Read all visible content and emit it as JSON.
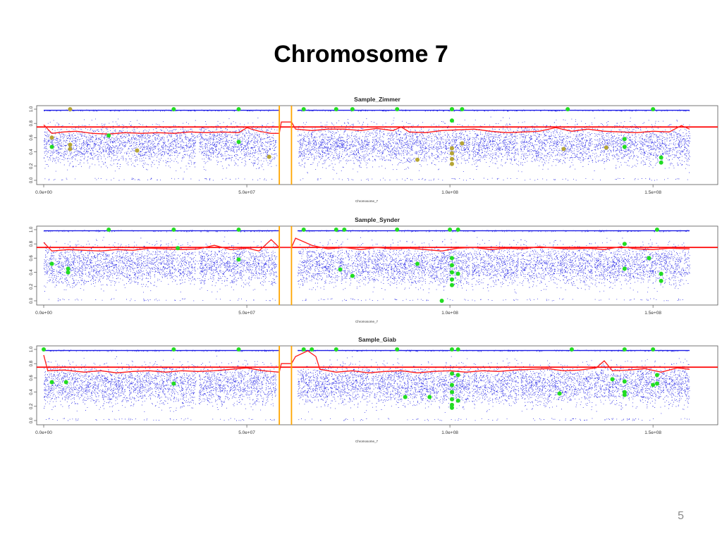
{
  "slide": {
    "title": "Chromosome 7",
    "page_number": "5"
  },
  "colors": {
    "points": "#1f1fe6",
    "baf_line": "#ff1a1a",
    "threshold_line": "#ff0000",
    "centromere_lines": "#ffa500",
    "highlight_green": "#22dd22",
    "highlight_olive": "#b5a535"
  },
  "chart_data": [
    {
      "type": "scatter",
      "title": "Sample_Zimmer",
      "xlabel": "Chromosome_7",
      "ylabel": "",
      "xlim": [
        0,
        159000000
      ],
      "ylim": [
        0,
        1
      ],
      "x_ticks": [
        0,
        50000000,
        100000000,
        150000000
      ],
      "x_tick_labels": [
        "0.0e+00",
        "5.0e+07",
        "1.0e+08",
        "1.5e+08"
      ],
      "y_ticks": [
        0,
        0.2,
        0.4,
        0.6,
        0.8,
        1.0
      ],
      "y_tick_labels": [
        "0.0",
        "0.2",
        "0.4",
        "0.6",
        "0.8",
        "1.0"
      ],
      "threshold": 0.75,
      "centromere": [
        58000000,
        61000000
      ],
      "grid": false,
      "series": [
        {
          "values": [
            [
              0,
              0.78
            ],
            [
              2000000,
              0.66
            ],
            [
              5000000,
              0.68
            ],
            [
              8000000,
              0.69
            ],
            [
              12000000,
              0.66
            ],
            [
              16000000,
              0.65
            ],
            [
              20000000,
              0.67
            ],
            [
              24000000,
              0.66
            ],
            [
              28000000,
              0.67
            ],
            [
              32000000,
              0.66
            ],
            [
              36000000,
              0.68
            ],
            [
              40000000,
              0.67
            ],
            [
              44000000,
              0.68
            ],
            [
              48000000,
              0.67
            ],
            [
              50000000,
              0.74
            ],
            [
              53000000,
              0.69
            ],
            [
              56000000,
              0.66
            ],
            [
              58000000,
              0.66
            ],
            [
              58500000,
              0.82
            ],
            [
              61000000,
              0.82
            ],
            [
              62000000,
              0.72
            ],
            [
              66000000,
              0.7
            ],
            [
              70000000,
              0.72
            ],
            [
              74000000,
              0.72
            ],
            [
              78000000,
              0.7
            ],
            [
              82000000,
              0.73
            ],
            [
              86000000,
              0.7
            ],
            [
              88000000,
              0.75
            ],
            [
              90000000,
              0.68
            ],
            [
              94000000,
              0.67
            ],
            [
              98000000,
              0.7
            ],
            [
              102000000,
              0.71
            ],
            [
              106000000,
              0.72
            ],
            [
              110000000,
              0.69
            ],
            [
              114000000,
              0.67
            ],
            [
              118000000,
              0.68
            ],
            [
              122000000,
              0.69
            ],
            [
              126000000,
              0.74
            ],
            [
              130000000,
              0.69
            ],
            [
              134000000,
              0.72
            ],
            [
              138000000,
              0.69
            ],
            [
              142000000,
              0.68
            ],
            [
              146000000,
              0.67
            ],
            [
              150000000,
              0.69
            ],
            [
              154000000,
              0.68
            ],
            [
              157000000,
              0.77
            ],
            [
              159000000,
              0.72
            ]
          ]
        }
      ],
      "green_points": [
        [
          2000000,
          0.47
        ],
        [
          16000000,
          0.63
        ],
        [
          32000000,
          1.0
        ],
        [
          48000000,
          1.0
        ],
        [
          48000000,
          0.54
        ],
        [
          64000000,
          1.0
        ],
        [
          72000000,
          1.0
        ],
        [
          76000000,
          1.0
        ],
        [
          87000000,
          1.0
        ],
        [
          100500000,
          0.84
        ],
        [
          100500000,
          1.0
        ],
        [
          103000000,
          1.0
        ],
        [
          129000000,
          1.0
        ],
        [
          143000000,
          0.58
        ],
        [
          143000000,
          0.47
        ],
        [
          150000000,
          1.0
        ],
        [
          152000000,
          0.32
        ],
        [
          152000000,
          0.25
        ]
      ],
      "olive_points": [
        [
          2000000,
          0.6
        ],
        [
          6500000,
          0.44
        ],
        [
          6500000,
          0.5
        ],
        [
          6500000,
          1.0
        ],
        [
          23000000,
          0.42
        ],
        [
          55500000,
          0.33
        ],
        [
          92000000,
          0.29
        ],
        [
          100500000,
          0.45
        ],
        [
          100500000,
          0.38
        ],
        [
          100500000,
          0.3
        ],
        [
          100500000,
          0.23
        ],
        [
          100500000,
          1.0
        ],
        [
          103000000,
          0.52
        ],
        [
          128000000,
          0.44
        ],
        [
          138500000,
          0.46
        ]
      ]
    },
    {
      "type": "scatter",
      "title": "Sample_Synder",
      "xlabel": "Chromosome_7",
      "ylabel": "",
      "xlim": [
        0,
        159000000
      ],
      "ylim": [
        0,
        1
      ],
      "x_ticks": [
        0,
        50000000,
        100000000,
        150000000
      ],
      "x_tick_labels": [
        "0.0e+00",
        "5.0e+07",
        "1.0e+08",
        "1.5e+08"
      ],
      "y_ticks": [
        0,
        0.2,
        0.4,
        0.6,
        0.8,
        1.0
      ],
      "y_tick_labels": [
        "0.0",
        "0.2",
        "0.4",
        "0.6",
        "0.8",
        "1.0"
      ],
      "threshold": 0.75,
      "centromere": [
        58000000,
        61000000
      ],
      "grid": false,
      "series": [
        {
          "values": [
            [
              0,
              0.82
            ],
            [
              2000000,
              0.7
            ],
            [
              6000000,
              0.72
            ],
            [
              10000000,
              0.71
            ],
            [
              14000000,
              0.7
            ],
            [
              18000000,
              0.72
            ],
            [
              22000000,
              0.71
            ],
            [
              26000000,
              0.74
            ],
            [
              30000000,
              0.73
            ],
            [
              34000000,
              0.72
            ],
            [
              38000000,
              0.73
            ],
            [
              42000000,
              0.78
            ],
            [
              46000000,
              0.72
            ],
            [
              50000000,
              0.74
            ],
            [
              53000000,
              0.7
            ],
            [
              56000000,
              0.86
            ],
            [
              58000000,
              0.75
            ],
            [
              58500000,
              0.75
            ],
            [
              61000000,
              0.75
            ],
            [
              62000000,
              0.88
            ],
            [
              66000000,
              0.78
            ],
            [
              70000000,
              0.73
            ],
            [
              74000000,
              0.75
            ],
            [
              78000000,
              0.72
            ],
            [
              82000000,
              0.75
            ],
            [
              86000000,
              0.73
            ],
            [
              90000000,
              0.74
            ],
            [
              94000000,
              0.72
            ],
            [
              98000000,
              0.7
            ],
            [
              102000000,
              0.74
            ],
            [
              106000000,
              0.75
            ],
            [
              110000000,
              0.72
            ],
            [
              114000000,
              0.74
            ],
            [
              118000000,
              0.73
            ],
            [
              122000000,
              0.76
            ],
            [
              126000000,
              0.74
            ],
            [
              130000000,
              0.73
            ],
            [
              134000000,
              0.74
            ],
            [
              138000000,
              0.72
            ],
            [
              142000000,
              0.76
            ],
            [
              146000000,
              0.73
            ],
            [
              150000000,
              0.72
            ],
            [
              154000000,
              0.74
            ],
            [
              159000000,
              0.73
            ]
          ]
        }
      ],
      "green_points": [
        [
          2000000,
          0.52
        ],
        [
          6000000,
          0.45
        ],
        [
          6000000,
          0.4
        ],
        [
          16000000,
          1.0
        ],
        [
          32000000,
          1.0
        ],
        [
          33000000,
          0.74
        ],
        [
          48000000,
          1.0
        ],
        [
          48000000,
          0.58
        ],
        [
          64000000,
          1.0
        ],
        [
          72000000,
          1.0
        ],
        [
          73000000,
          0.44
        ],
        [
          74000000,
          1.0
        ],
        [
          76000000,
          0.35
        ],
        [
          87000000,
          1.0
        ],
        [
          92000000,
          0.52
        ],
        [
          100000000,
          1.0
        ],
        [
          100500000,
          0.6
        ],
        [
          100500000,
          0.5
        ],
        [
          100500000,
          0.4
        ],
        [
          100500000,
          0.3
        ],
        [
          100500000,
          0.22
        ],
        [
          102000000,
          1.0
        ],
        [
          102000000,
          0.38
        ],
        [
          98000000,
          0.0
        ],
        [
          143000000,
          0.8
        ],
        [
          143000000,
          0.45
        ],
        [
          149000000,
          0.6
        ],
        [
          151000000,
          1.0
        ],
        [
          152000000,
          0.38
        ],
        [
          152000000,
          0.28
        ]
      ],
      "olive_points": []
    },
    {
      "type": "scatter",
      "title": "Sample_Giab",
      "xlabel": "Chromosome_7",
      "ylabel": "",
      "xlim": [
        0,
        159000000
      ],
      "ylim": [
        0,
        1
      ],
      "x_ticks": [
        0,
        50000000,
        100000000,
        150000000
      ],
      "x_tick_labels": [
        "0.0e+00",
        "5.0e+07",
        "1.0e+08",
        "1.5e+08"
      ],
      "y_ticks": [
        0,
        0.2,
        0.4,
        0.6,
        0.8,
        1.0
      ],
      "y_tick_labels": [
        "0.0",
        "0.2",
        "0.4",
        "0.6",
        "0.8",
        "1.0"
      ],
      "threshold": 0.75,
      "centromere": [
        58000000,
        61000000
      ],
      "grid": false,
      "series": [
        {
          "values": [
            [
              0,
              0.92
            ],
            [
              1000000,
              0.7
            ],
            [
              5000000,
              0.71
            ],
            [
              10000000,
              0.68
            ],
            [
              14000000,
              0.7
            ],
            [
              18000000,
              0.67
            ],
            [
              22000000,
              0.69
            ],
            [
              26000000,
              0.7
            ],
            [
              30000000,
              0.68
            ],
            [
              34000000,
              0.7
            ],
            [
              38000000,
              0.69
            ],
            [
              42000000,
              0.7
            ],
            [
              46000000,
              0.72
            ],
            [
              50000000,
              0.74
            ],
            [
              54000000,
              0.7
            ],
            [
              58000000,
              0.68
            ],
            [
              58500000,
              0.8
            ],
            [
              61000000,
              0.8
            ],
            [
              62000000,
              0.9
            ],
            [
              65000000,
              0.98
            ],
            [
              67000000,
              0.9
            ],
            [
              68000000,
              0.72
            ],
            [
              72000000,
              0.68
            ],
            [
              76000000,
              0.7
            ],
            [
              80000000,
              0.67
            ],
            [
              84000000,
              0.69
            ],
            [
              88000000,
              0.7
            ],
            [
              92000000,
              0.67
            ],
            [
              96000000,
              0.69
            ],
            [
              100000000,
              0.7
            ],
            [
              104000000,
              0.68
            ],
            [
              108000000,
              0.7
            ],
            [
              112000000,
              0.69
            ],
            [
              116000000,
              0.71
            ],
            [
              120000000,
              0.72
            ],
            [
              124000000,
              0.73
            ],
            [
              128000000,
              0.7
            ],
            [
              132000000,
              0.71
            ],
            [
              136000000,
              0.74
            ],
            [
              138000000,
              0.84
            ],
            [
              140000000,
              0.7
            ],
            [
              144000000,
              0.71
            ],
            [
              148000000,
              0.73
            ],
            [
              152000000,
              0.68
            ],
            [
              156000000,
              0.74
            ],
            [
              159000000,
              0.72
            ]
          ]
        }
      ],
      "green_points": [
        [
          0,
          1.0
        ],
        [
          2000000,
          0.54
        ],
        [
          5500000,
          0.54
        ],
        [
          32000000,
          1.0
        ],
        [
          32000000,
          0.52
        ],
        [
          48000000,
          1.0
        ],
        [
          64000000,
          1.0
        ],
        [
          66000000,
          1.0
        ],
        [
          72000000,
          1.0
        ],
        [
          87000000,
          1.0
        ],
        [
          89000000,
          0.33
        ],
        [
          95000000,
          0.33
        ],
        [
          100500000,
          1.0
        ],
        [
          100500000,
          0.66
        ],
        [
          100500000,
          0.5
        ],
        [
          100500000,
          0.4
        ],
        [
          100500000,
          0.3
        ],
        [
          100500000,
          0.22
        ],
        [
          100500000,
          0.18
        ],
        [
          102000000,
          1.0
        ],
        [
          102000000,
          0.28
        ],
        [
          102000000,
          0.64
        ],
        [
          127000000,
          0.38
        ],
        [
          130000000,
          1.0
        ],
        [
          140000000,
          0.58
        ],
        [
          143000000,
          1.0
        ],
        [
          143000000,
          0.55
        ],
        [
          143000000,
          0.4
        ],
        [
          143000000,
          0.36
        ],
        [
          150000000,
          1.0
        ],
        [
          150000000,
          0.5
        ],
        [
          151000000,
          0.64
        ],
        [
          151000000,
          0.52
        ]
      ],
      "olive_points": []
    }
  ]
}
